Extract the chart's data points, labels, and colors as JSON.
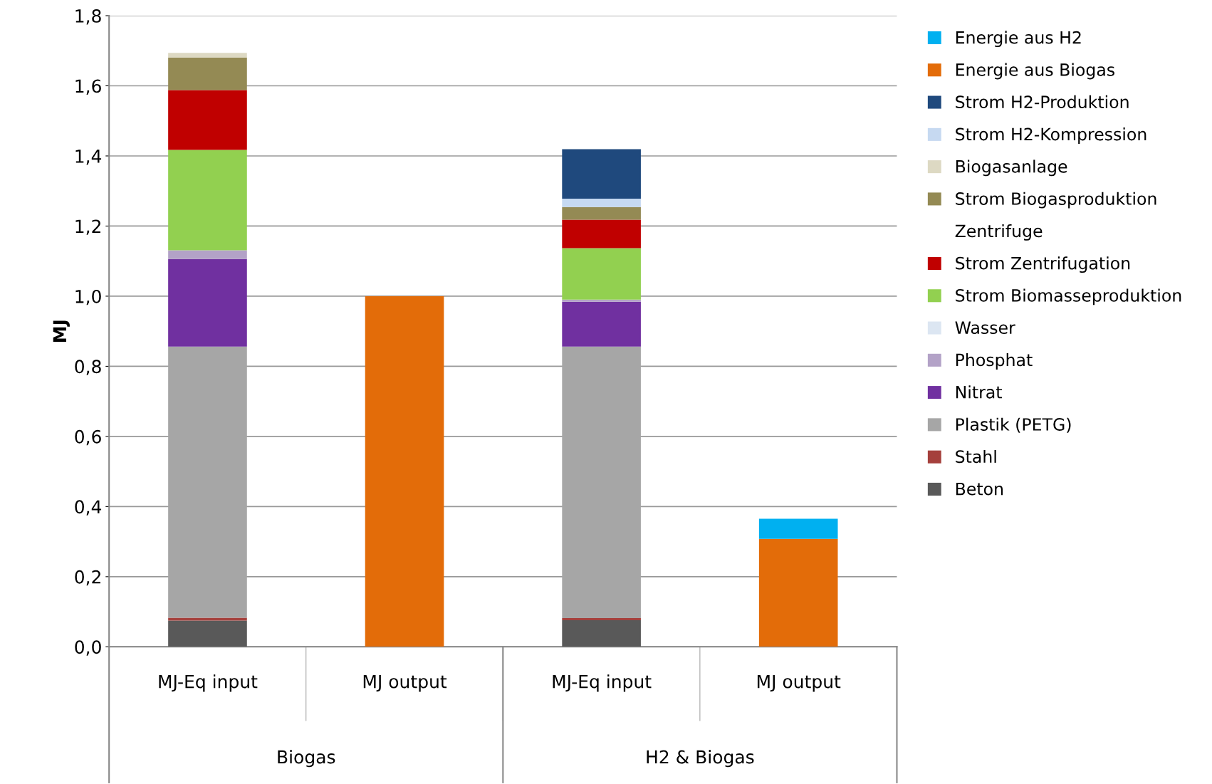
{
  "chart_data": {
    "type": "bar",
    "stacked": true,
    "ylabel": "MJ",
    "categories": [
      "MJ-Eq input",
      "MJ output",
      "MJ-Eq input",
      "MJ output"
    ],
    "annotations": [
      "Biogas",
      "H2 & Biogas"
    ],
    "series": [
      {
        "name": "Beton",
        "color": "#595959",
        "values": [
          0.075,
          null,
          0.076,
          null
        ]
      },
      {
        "name": "Stahl",
        "color": "#a5403c",
        "values": [
          0.008,
          null,
          0.006,
          null
        ]
      },
      {
        "name": "Plastik (PETG)",
        "color": "#a6a6a6",
        "values": [
          0.773,
          null,
          0.774,
          null
        ]
      },
      {
        "name": "Nitrat",
        "color": "#7030a0",
        "values": [
          0.25,
          null,
          0.128,
          null
        ]
      },
      {
        "name": "Phosphat",
        "color": "#b3a2c7",
        "values": [
          0.025,
          null,
          0.006,
          null
        ]
      },
      {
        "name": "Wasser",
        "color": "#dce6f2",
        "values": [
          null,
          null,
          null,
          null
        ]
      },
      {
        "name": "Strom Biomasseproduktion",
        "color": "#92d050",
        "values": [
          0.286,
          null,
          0.147,
          null
        ]
      },
      {
        "name": "Strom Zentrifugation",
        "color": "#c00000",
        "values": [
          0.171,
          null,
          0.081,
          null
        ]
      },
      {
        "name": "Zentrifuge",
        "values": [
          null,
          null,
          null,
          null
        ]
      },
      {
        "name": "Strom Biogasproduktion",
        "color": "#948a54",
        "values": [
          0.092,
          null,
          0.036,
          null
        ]
      },
      {
        "name": "Biogasanlage",
        "color": "#ddd9c3",
        "values": [
          0.014,
          null,
          null,
          null
        ]
      },
      {
        "name": "Strom H2-Kompression",
        "color": "#c6d9f1",
        "values": [
          null,
          null,
          0.024,
          null
        ]
      },
      {
        "name": "Strom H2-Produktion",
        "color": "#1f497d",
        "values": [
          null,
          null,
          0.141,
          null
        ]
      },
      {
        "name": "Energie aus Biogas",
        "color": "#e36c09",
        "values": [
          null,
          1.0,
          null,
          0.308
        ]
      },
      {
        "name": "Energie aus H2",
        "color": "#00b0f0",
        "values": [
          null,
          null,
          null,
          0.057
        ]
      }
    ],
    "ylim": [
      0,
      1.8
    ],
    "yticks": [
      {
        "value": 0,
        "label": "0,0"
      },
      {
        "value": 0.2,
        "label": "0,2"
      },
      {
        "value": 0.4,
        "label": "0,4"
      },
      {
        "value": 0.6,
        "label": "0,6"
      },
      {
        "value": 0.8,
        "label": "0,8"
      },
      {
        "value": 1.0,
        "label": "1,0"
      },
      {
        "value": 1.2,
        "label": "1,2"
      },
      {
        "value": 1.4,
        "label": "1,4"
      },
      {
        "value": 1.6,
        "label": "1,6"
      },
      {
        "value": 1.8,
        "label": "1,8"
      }
    ],
    "grid": "y",
    "legend": "right"
  }
}
